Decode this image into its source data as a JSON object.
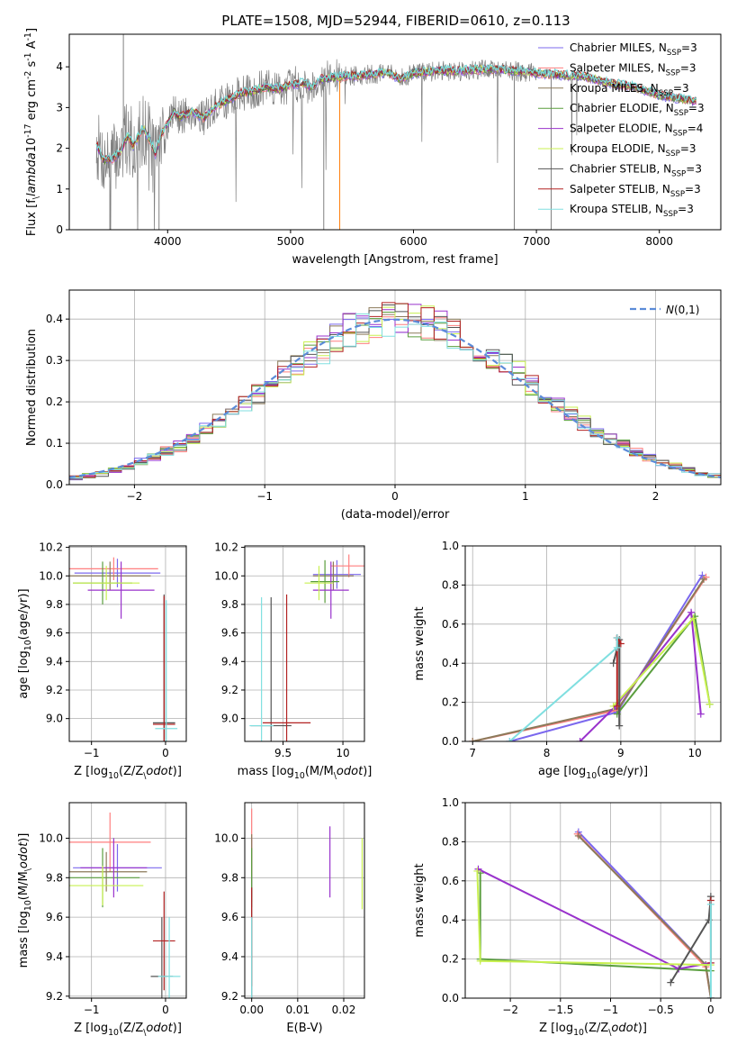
{
  "title": "PLATE=1508, MJD=52944, FIBERID=0610, z=0.113",
  "models": [
    {
      "name": "Chabrier MILES, N$_{SSP}$=3",
      "color": "#7b68ee",
      "lw": 0.8
    },
    {
      "name": "Salpeter MILES, N$_{SSP}$=3",
      "color": "#ff7f7f",
      "lw": 0.8
    },
    {
      "name": "Kroupa MILES, N$_{SSP}$=3",
      "color": "#8c7a5a",
      "lw": 0.8
    },
    {
      "name": "Chabrier ELODIE, N$_{SSP}$=3",
      "color": "#5a9e3e",
      "lw": 0.8
    },
    {
      "name": "Salpeter ELODIE, N$_{SSP}$=4",
      "color": "#9932cc",
      "lw": 0.8
    },
    {
      "name": "Kroupa ELODIE, N$_{SSP}$=3",
      "color": "#c8f050",
      "lw": 0.8
    },
    {
      "name": "Chabrier STELIB, N$_{SSP}$=3",
      "color": "#555555",
      "lw": 0.8
    },
    {
      "name": "Salpeter STELIB, N$_{SSP}$=3",
      "color": "#b22222",
      "lw": 0.8
    },
    {
      "name": "Kroupa STELIB, N$_{SSP}$=3",
      "color": "#80dfe0",
      "lw": 0.8
    }
  ],
  "chart_data": [
    {
      "id": "spectrum",
      "type": "line",
      "xlabel": "wavelength [Angstrom, rest frame]",
      "ylabel": "Flux [f$_\\lambda$10$^{-17}$ erg cm$^{-2}$ s$^{-1}$ A$^{-1}$]",
      "xlim": [
        3200,
        8500
      ],
      "ylim": [
        0,
        4.8
      ],
      "xticks": [
        4000,
        5000,
        6000,
        7000,
        8000
      ],
      "yticks": [
        0,
        1,
        2,
        3,
        4
      ],
      "data_color": "#808080",
      "model_color": "#78d8d8",
      "model_curve": [
        [
          3420,
          2.1
        ],
        [
          3480,
          1.7
        ],
        [
          3550,
          1.75
        ],
        [
          3600,
          1.85
        ],
        [
          3680,
          2.3
        ],
        [
          3720,
          2.05
        ],
        [
          3800,
          2.5
        ],
        [
          3860,
          2.2
        ],
        [
          3900,
          1.85
        ],
        [
          3940,
          2.3
        ],
        [
          3980,
          2.5
        ],
        [
          4050,
          2.9
        ],
        [
          4100,
          2.75
        ],
        [
          4200,
          2.9
        ],
        [
          4300,
          2.75
        ],
        [
          4400,
          3.05
        ],
        [
          4500,
          3.2
        ],
        [
          4600,
          3.35
        ],
        [
          4700,
          3.4
        ],
        [
          4800,
          3.5
        ],
        [
          4900,
          3.45
        ],
        [
          5000,
          3.55
        ],
        [
          5100,
          3.6
        ],
        [
          5170,
          3.5
        ],
        [
          5250,
          3.7
        ],
        [
          5400,
          3.75
        ],
        [
          5600,
          3.8
        ],
        [
          5800,
          3.85
        ],
        [
          5890,
          3.7
        ],
        [
          6000,
          3.85
        ],
        [
          6200,
          3.9
        ],
        [
          6400,
          3.9
        ],
        [
          6600,
          3.95
        ],
        [
          6800,
          3.9
        ],
        [
          7000,
          3.85
        ],
        [
          7200,
          3.8
        ],
        [
          7400,
          3.75
        ],
        [
          7600,
          3.6
        ],
        [
          7800,
          3.5
        ],
        [
          8000,
          3.3
        ],
        [
          8200,
          3.2
        ],
        [
          8300,
          3.15
        ]
      ]
    },
    {
      "id": "residuals",
      "type": "histogram",
      "xlabel": "(data-model)/error",
      "ylabel": "Normed distribution",
      "xlim": [
        -2.5,
        2.5
      ],
      "ylim": [
        0,
        0.47
      ],
      "xticks": [
        -2,
        -1,
        0,
        1,
        2
      ],
      "yticks": [
        0.0,
        0.1,
        0.2,
        0.3,
        0.4
      ],
      "reference_curve": "$\\mathcal{N}(0,1)$",
      "reference_color": "#5b8bd8",
      "bin_width": 0.1
    },
    {
      "id": "age_vs_Z",
      "type": "errorbar",
      "xlabel": "Z [log$_{10}$(Z/Z$_\\odot$)]",
      "ylabel": "age  [log$_{10}$(age/yr)]",
      "xlim": [
        -1.3,
        0.28
      ],
      "ylim": [
        8.84,
        10.21
      ],
      "xticks": [
        -1,
        0
      ],
      "yticks": [
        9.0,
        9.2,
        9.4,
        9.6,
        9.8,
        10.0,
        10.2
      ],
      "points": [
        {
          "x": -0.65,
          "y": 10.02,
          "xe": 0.58,
          "ye": 0.1,
          "c": 0
        },
        {
          "x": -0.7,
          "y": 10.05,
          "xe": 0.6,
          "ye": 0.08,
          "c": 1
        },
        {
          "x": -0.75,
          "y": 10.0,
          "xe": 0.55,
          "ye": 0.1,
          "c": 2
        },
        {
          "x": -0.85,
          "y": 9.95,
          "xe": 0.4,
          "ye": 0.15,
          "c": 3
        },
        {
          "x": -0.6,
          "y": 9.9,
          "xe": 0.45,
          "ye": 0.2,
          "c": 4
        },
        {
          "x": -0.8,
          "y": 9.95,
          "xe": 0.45,
          "ye": 0.12,
          "c": 5
        },
        {
          "x": -0.02,
          "y": 8.97,
          "xe": 0.15,
          "ye": 0.9,
          "c": 6
        },
        {
          "x": -0.02,
          "y": 8.96,
          "xe": 0.15,
          "ye": 0.9,
          "c": 7
        },
        {
          "x": 0.01,
          "y": 8.93,
          "xe": 0.15,
          "ye": 0.9,
          "c": 8
        }
      ]
    },
    {
      "id": "age_vs_mass",
      "type": "errorbar",
      "xlabel": "mass [log$_{10}$(M/M$_\\odot$)]",
      "ylabel": "",
      "xlim": [
        9.18,
        10.18
      ],
      "ylim": [
        8.84,
        10.21
      ],
      "xticks": [
        9.5,
        10.0
      ],
      "yticks": [
        9.0,
        9.2,
        9.4,
        9.6,
        9.8,
        10.0,
        10.2
      ],
      "points": [
        {
          "x": 9.95,
          "y": 10.01,
          "xe": 0.2,
          "ye": 0.1,
          "c": 0
        },
        {
          "x": 10.05,
          "y": 10.07,
          "xe": 0.15,
          "ye": 0.08,
          "c": 1
        },
        {
          "x": 9.92,
          "y": 10.0,
          "xe": 0.17,
          "ye": 0.1,
          "c": 2
        },
        {
          "x": 9.85,
          "y": 9.96,
          "xe": 0.12,
          "ye": 0.15,
          "c": 3
        },
        {
          "x": 9.9,
          "y": 9.9,
          "xe": 0.15,
          "ye": 0.2,
          "c": 4
        },
        {
          "x": 9.8,
          "y": 9.95,
          "xe": 0.12,
          "ye": 0.12,
          "c": 5
        },
        {
          "x": 9.4,
          "y": 8.95,
          "xe": 0.17,
          "ye": 0.9,
          "c": 6
        },
        {
          "x": 9.53,
          "y": 8.97,
          "xe": 0.2,
          "ye": 0.9,
          "c": 7
        },
        {
          "x": 9.32,
          "y": 8.95,
          "xe": 0.1,
          "ye": 0.9,
          "c": 8
        }
      ]
    },
    {
      "id": "weight_vs_age",
      "type": "line",
      "xlabel": "age  [log$_{10}$(age/yr)]",
      "ylabel": "mass weight",
      "xlim": [
        6.9,
        10.35
      ],
      "ylim": [
        0,
        1.0
      ],
      "xticks": [
        7,
        8,
        9,
        10
      ],
      "yticks": [
        0.0,
        0.2,
        0.4,
        0.6,
        0.8,
        1.0
      ],
      "series": [
        {
          "c": 0,
          "pts": [
            [
              7.5,
              0.0
            ],
            [
              8.95,
              0.15
            ],
            [
              10.1,
              0.85
            ]
          ]
        },
        {
          "c": 1,
          "pts": [
            [
              7.0,
              0.0
            ],
            [
              8.95,
              0.16
            ],
            [
              10.15,
              0.84
            ]
          ]
        },
        {
          "c": 2,
          "pts": [
            [
              7.0,
              0.0
            ],
            [
              8.97,
              0.17
            ],
            [
              10.12,
              0.83
            ]
          ]
        },
        {
          "c": 3,
          "pts": [
            [
              8.95,
              0.14
            ],
            [
              10.0,
              0.64
            ],
            [
              10.2,
              0.19
            ]
          ]
        },
        {
          "c": 4,
          "pts": [
            [
              8.45,
              0.0
            ],
            [
              8.93,
              0.18
            ],
            [
              9.95,
              0.66
            ],
            [
              10.08,
              0.14
            ]
          ]
        },
        {
          "c": 5,
          "pts": [
            [
              8.9,
              0.18
            ],
            [
              9.98,
              0.63
            ],
            [
              10.2,
              0.19
            ]
          ]
        },
        {
          "c": 6,
          "pts": [
            [
              8.98,
              0.08
            ],
            [
              8.98,
              0.52
            ],
            [
              8.9,
              0.4
            ]
          ]
        },
        {
          "c": 7,
          "pts": [
            [
              8.95,
              0.18
            ],
            [
              8.95,
              0.53
            ],
            [
              9.0,
              0.5
            ]
          ]
        },
        {
          "c": 8,
          "pts": [
            [
              7.5,
              0.0
            ],
            [
              8.95,
              0.48
            ],
            [
              8.95,
              0.53
            ]
          ]
        }
      ]
    },
    {
      "id": "mass_vs_Z",
      "type": "errorbar",
      "xlabel": "Z [log$_{10}$(Z/Z$_\\odot$)]",
      "ylabel": "mass [log$_{10}$(M/M$_\\odot$)]",
      "xlim": [
        -1.3,
        0.28
      ],
      "ylim": [
        9.19,
        10.18
      ],
      "xticks": [
        -1,
        0
      ],
      "yticks": [
        9.2,
        9.4,
        9.6,
        9.8,
        10.0
      ],
      "points": [
        {
          "x": -0.65,
          "y": 9.85,
          "xe": 0.6,
          "ye": 0.12,
          "c": 0
        },
        {
          "x": -0.75,
          "y": 9.98,
          "xe": 0.55,
          "ye": 0.15,
          "c": 1
        },
        {
          "x": -0.8,
          "y": 9.83,
          "xe": 0.55,
          "ye": 0.1,
          "c": 2
        },
        {
          "x": -0.85,
          "y": 9.8,
          "xe": 0.5,
          "ye": 0.15,
          "c": 3
        },
        {
          "x": -0.7,
          "y": 9.85,
          "xe": 0.45,
          "ye": 0.15,
          "c": 4
        },
        {
          "x": -0.85,
          "y": 9.76,
          "xe": 0.55,
          "ye": 0.1,
          "c": 5
        },
        {
          "x": -0.05,
          "y": 9.3,
          "xe": 0.15,
          "ye": 0.3,
          "c": 6
        },
        {
          "x": -0.02,
          "y": 9.48,
          "xe": 0.15,
          "ye": 0.25,
          "c": 7
        },
        {
          "x": 0.05,
          "y": 9.3,
          "xe": 0.15,
          "ye": 0.3,
          "c": 8
        }
      ]
    },
    {
      "id": "mass_vs_EBV",
      "type": "errorbar",
      "xlabel": "E(B-V)",
      "ylabel": "",
      "xlim": [
        -0.0015,
        0.0245
      ],
      "ylim": [
        9.19,
        10.18
      ],
      "xticks": [
        0.0,
        0.01,
        0.02
      ],
      "xticklabels": [
        "0.00",
        "0.01",
        "0.02"
      ],
      "yticks": [
        9.2,
        9.4,
        9.6,
        9.8,
        10.0
      ],
      "points": [
        {
          "x": 0.0,
          "y": 9.85,
          "xe": 0,
          "ye": 0.15,
          "c": 0
        },
        {
          "x": 0.0,
          "y": 9.98,
          "xe": 0,
          "ye": 0.17,
          "c": 1
        },
        {
          "x": 0.0,
          "y": 9.85,
          "xe": 0,
          "ye": 0.17,
          "c": 2
        },
        {
          "x": 0.0,
          "y": 9.8,
          "xe": 0,
          "ye": 0.15,
          "c": 3
        },
        {
          "x": 0.017,
          "y": 9.88,
          "xe": 0,
          "ye": 0.18,
          "c": 4
        },
        {
          "x": 0.024,
          "y": 9.82,
          "xe": 0,
          "ye": 0.18,
          "c": 5
        },
        {
          "x": 0.0,
          "y": 9.45,
          "xe": 0,
          "ye": 0.3,
          "c": 6
        },
        {
          "x": 0.0,
          "y": 9.5,
          "xe": 0,
          "ye": 0.25,
          "c": 7
        },
        {
          "x": 0.0,
          "y": 9.3,
          "xe": 0,
          "ye": 0.3,
          "c": 8
        }
      ]
    },
    {
      "id": "weight_vs_Z",
      "type": "line",
      "xlabel": "Z [log$_{10}$(Z/Z$_\\odot$)]",
      "ylabel": "mass weight",
      "xlim": [
        -2.45,
        0.1
      ],
      "ylim": [
        0,
        1.0
      ],
      "xticks": [
        -2.0,
        -1.5,
        -1.0,
        -0.5,
        0.0
      ],
      "yticks": [
        0.0,
        0.2,
        0.4,
        0.6,
        0.8,
        1.0
      ],
      "series": [
        {
          "c": 0,
          "pts": [
            [
              -1.32,
              0.85
            ],
            [
              -0.05,
              0.17
            ],
            [
              0.0,
              0.0
            ]
          ]
        },
        {
          "c": 1,
          "pts": [
            [
              -1.33,
              0.84
            ],
            [
              -0.05,
              0.16
            ],
            [
              0.0,
              0.0
            ]
          ]
        },
        {
          "c": 2,
          "pts": [
            [
              -1.32,
              0.83
            ],
            [
              -0.05,
              0.17
            ],
            [
              0.0,
              0.0
            ]
          ]
        },
        {
          "c": 3,
          "pts": [
            [
              -2.3,
              0.64
            ],
            [
              -2.3,
              0.2
            ],
            [
              0.0,
              0.14
            ]
          ]
        },
        {
          "c": 4,
          "pts": [
            [
              -2.32,
              0.66
            ],
            [
              -0.32,
              0.15
            ],
            [
              0.0,
              0.18
            ]
          ]
        },
        {
          "c": 5,
          "pts": [
            [
              -2.33,
              0.65
            ],
            [
              -2.3,
              0.19
            ],
            [
              0.0,
              0.17
            ]
          ]
        },
        {
          "c": 6,
          "pts": [
            [
              -0.4,
              0.08
            ],
            [
              -0.02,
              0.4
            ],
            [
              0.0,
              0.52
            ]
          ]
        },
        {
          "c": 7,
          "pts": [
            [
              0.0,
              0.18
            ],
            [
              0.0,
              0.5
            ]
          ]
        },
        {
          "c": 8,
          "pts": [
            [
              0.0,
              0.48
            ],
            [
              0.0,
              0.0
            ]
          ]
        }
      ]
    }
  ]
}
